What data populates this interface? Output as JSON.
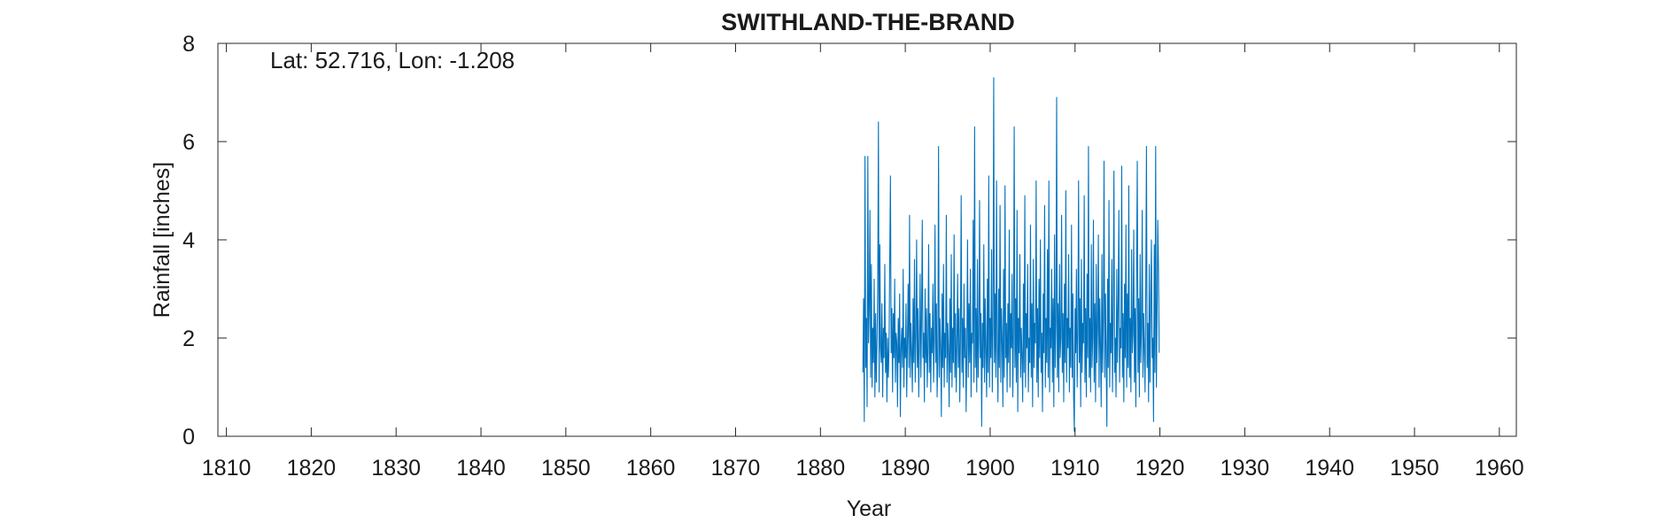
{
  "chart_data": {
    "type": "line",
    "title": "SWITHLAND-THE-BRAND",
    "annotation": "Lat: 52.716, Lon: -1.208",
    "xlabel": "Year",
    "ylabel": "Rainfall [inches]",
    "xlim": [
      1809,
      1962
    ],
    "ylim": [
      0,
      8
    ],
    "xticks": [
      1810,
      1820,
      1830,
      1840,
      1850,
      1860,
      1870,
      1880,
      1890,
      1900,
      1910,
      1920,
      1930,
      1940,
      1950,
      1960
    ],
    "yticks": [
      0,
      2,
      4,
      6,
      8
    ],
    "grid": false,
    "box": true,
    "series": [
      {
        "color": "#0072BD",
        "start_year": 1885.0,
        "step_years": 0.0833333,
        "values": [
          1.3,
          2.8,
          0.3,
          5.7,
          1.4,
          2.4,
          0.6,
          5.7,
          1.9,
          2.6,
          4.6,
          1.2,
          3.5,
          1.0,
          2.2,
          1.5,
          3.2,
          0.8,
          2.5,
          1.1,
          1.9,
          3.0,
          6.4,
          0.9,
          3.9,
          1.8,
          1.5,
          2.7,
          0.8,
          2.2,
          1.6,
          3.5,
          1.3,
          2.1,
          0.7,
          2.0,
          1.2,
          1.8,
          3.6,
          5.3,
          1.7,
          2.6,
          0.9,
          2.5,
          1.6,
          3.2,
          1.1,
          2.1,
          1.9,
          0.6,
          2.4,
          1.5,
          2.9,
          0.4,
          1.8,
          2.2,
          1.4,
          3.4,
          1.0,
          2.0,
          1.6,
          2.7,
          0.8,
          1.9,
          3.1,
          1.4,
          4.5,
          1.2,
          2.3,
          1.7,
          0.9,
          2.8,
          1.5,
          3.6,
          1.1,
          2.0,
          4.0,
          1.4,
          2.6,
          0.8,
          1.9,
          3.3,
          1.2,
          2.4,
          4.4,
          1.6,
          2.1,
          0.7,
          3.0,
          1.5,
          2.6,
          1.0,
          1.8,
          3.9,
          1.3,
          2.5,
          0.9,
          2.2,
          1.7,
          3.1,
          1.1,
          2.0,
          4.3,
          1.5,
          2.7,
          0.8,
          1.6,
          5.9,
          1.2,
          2.4,
          1.8,
          0.4,
          2.9,
          1.4,
          3.5,
          1.0,
          2.1,
          1.6,
          4.5,
          1.1,
          2.3,
          1.7,
          0.6,
          2.8,
          1.3,
          3.7,
          1.0,
          2.2,
          1.5,
          4.1,
          1.2,
          2.5,
          0.9,
          1.9,
          3.3,
          1.4,
          2.6,
          0.7,
          2.0,
          4.9,
          1.3,
          2.4,
          1.0,
          3.1,
          1.6,
          2.2,
          0.5,
          1.8,
          4.0,
          1.2,
          2.7,
          1.5,
          3.4,
          0.8,
          2.1,
          1.9,
          4.4,
          1.1,
          6.3,
          1.4,
          2.6,
          0.9,
          3.6,
          1.2,
          2.0,
          4.8,
          1.6,
          2.5,
          0.2,
          2.3,
          1.4,
          3.9,
          1.1,
          2.8,
          1.7,
          0.8,
          3.2,
          1.3,
          5.3,
          1.0,
          2.4,
          1.6,
          3.8,
          0.9,
          2.2,
          7.3,
          1.5,
          2.9,
          1.2,
          5.2,
          1.8,
          0.7,
          3.0,
          1.4,
          4.7,
          1.1,
          2.6,
          1.9,
          0.6,
          3.4,
          1.2,
          5.1,
          1.6,
          2.3,
          0.9,
          2.7,
          1.5,
          4.2,
          1.0,
          2.5,
          1.8,
          3.3,
          0.8,
          2.1,
          6.3,
          1.4,
          2.8,
          1.1,
          4.6,
          0.5,
          2.4,
          1.7,
          3.7,
          1.2,
          2.2,
          1.6,
          0.7,
          3.1,
          1.3,
          4.9,
          1.0,
          2.5,
          1.8,
          3.5,
          0.9,
          2.0,
          1.5,
          4.3,
          1.2,
          2.7,
          0.6,
          3.6,
          1.4,
          2.3,
          1.9,
          5.2,
          1.1,
          2.6,
          0.8,
          3.2,
          1.6,
          4.0,
          1.3,
          2.1,
          0.5,
          2.9,
          1.7,
          4.7,
          1.0,
          2.4,
          1.5,
          3.8,
          1.2,
          5.2,
          0.9,
          2.2,
          1.8,
          3.4,
          1.1,
          2.8,
          0.6,
          4.1,
          1.4,
          2.3,
          6.9,
          1.2,
          2.7,
          0.9,
          3.5,
          1.6,
          2.0,
          4.5,
          1.3,
          2.5,
          0.7,
          3.1,
          1.5,
          5.0,
          1.1,
          2.4,
          1.8,
          3.7,
          0.9,
          2.2,
          1.4,
          4.3,
          1.2,
          2.9,
          0.8,
          0.1,
          2.6,
          1.7,
          3.4,
          1.0,
          2.1,
          5.2,
          1.5,
          2.8,
          0.6,
          3.6,
          1.3,
          2.3,
          1.9,
          4.9,
          1.1,
          2.6,
          0.8,
          3.3,
          1.6,
          5.9,
          1.2,
          2.4,
          0.9,
          3.9,
          1.4,
          2.0,
          4.4,
          1.1,
          2.7,
          0.7,
          3.5,
          1.5,
          2.2,
          4.1,
          1.0,
          2.8,
          1.8,
          0.6,
          3.7,
          1.3,
          2.4,
          5.6,
          1.2,
          2.9,
          1.6,
          0.2,
          3.2,
          1.4,
          4.8,
          1.0,
          2.3,
          1.7,
          3.6,
          0.9,
          2.6,
          5.4,
          1.3,
          2.0,
          0.8,
          3.4,
          1.5,
          2.7,
          4.6,
          1.1,
          2.2,
          1.8,
          5.5,
          1.2,
          2.5,
          0.7,
          3.1,
          1.6,
          4.3,
          1.0,
          2.9,
          1.4,
          5.1,
          1.2,
          2.4,
          0.9,
          3.8,
          1.7,
          2.1,
          4.2,
          1.1,
          2.6,
          0.6,
          3.3,
          5.6,
          1.3,
          2.8,
          0.8,
          3.7,
          1.5,
          2.2,
          4.6,
          1.2,
          2.5,
          1.8,
          0.9,
          3.0,
          5.9,
          1.4,
          2.3,
          0.7,
          3.5,
          1.1,
          2.7,
          4.0,
          1.6,
          2.0,
          0.3,
          3.9,
          1.3,
          5.9,
          1.0,
          2.4,
          4.4,
          3.4,
          1.7
        ]
      }
    ]
  }
}
